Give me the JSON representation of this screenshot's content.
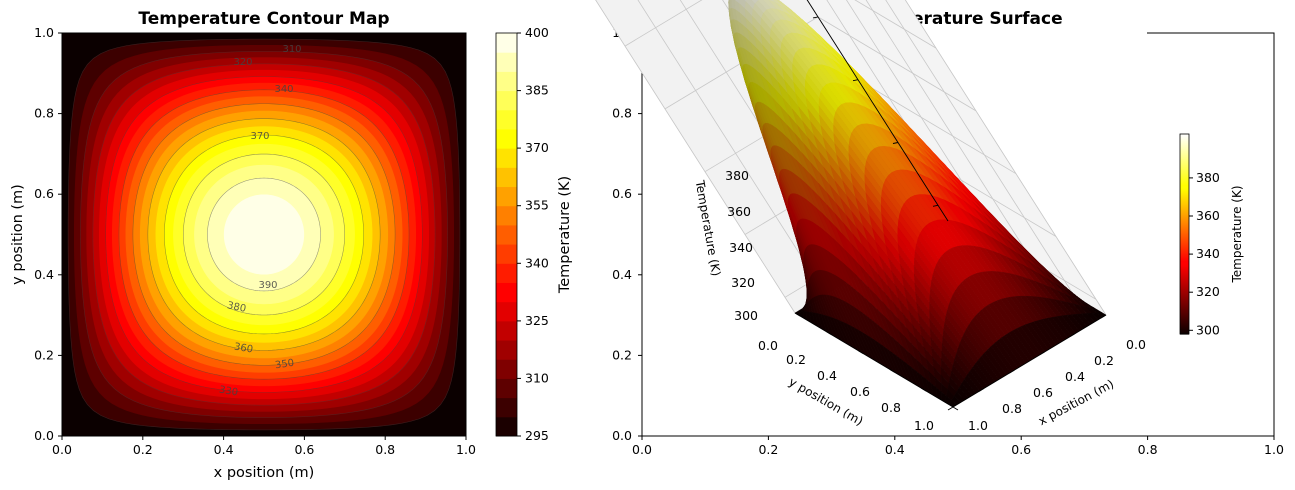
{
  "chart_data": [
    {
      "type": "heatmap",
      "title": "Temperature Contour Map",
      "xlabel": "x position (m)",
      "ylabel": "y position (m)",
      "xlim": [
        0.0,
        1.0
      ],
      "ylim": [
        0.0,
        1.0
      ],
      "xticks": [
        "0.0",
        "0.2",
        "0.4",
        "0.6",
        "0.8",
        "1.0"
      ],
      "yticks": [
        "0.0",
        "0.2",
        "0.4",
        "0.6",
        "0.8",
        "1.0"
      ],
      "colormap": "hot",
      "peak_location": [
        0.5,
        0.5
      ],
      "peak_value": 400,
      "edge_value": 295,
      "colorbar": {
        "label": "Temperature (K)",
        "range": [
          295,
          400
        ],
        "ticks": [
          "295",
          "310",
          "325",
          "340",
          "355",
          "370",
          "385",
          "400"
        ]
      },
      "contour_labels": [
        {
          "text": "310"
        },
        {
          "text": "320"
        },
        {
          "text": "340"
        },
        {
          "text": "370"
        },
        {
          "text": "390"
        },
        {
          "text": "380"
        },
        {
          "text": "360"
        },
        {
          "text": "350"
        },
        {
          "text": "330"
        }
      ]
    },
    {
      "type": "surface",
      "title": "3D Temperature Surface",
      "xlabel": "x position (m)",
      "ylabel": "y position (m)",
      "zlabel": "Temperature (K)",
      "xticks": [
        "0.0",
        "0.2",
        "0.4",
        "0.6",
        "0.8",
        "1.0"
      ],
      "yticks": [
        "0.0",
        "0.2",
        "0.4",
        "0.6",
        "0.8",
        "1.0"
      ],
      "zticks": [
        "300",
        "320",
        "340",
        "360",
        "380"
      ],
      "zlim": [
        295,
        400
      ],
      "outer_xticks": [
        "0.0",
        "0.2",
        "0.4",
        "0.6",
        "0.8",
        "1.0"
      ],
      "outer_yticks": [
        "0.0",
        "0.2",
        "0.4",
        "0.6",
        "0.8",
        "1.0"
      ],
      "colormap": "hot",
      "colorbar": {
        "label": "Temperature (K)",
        "range": [
          295,
          400
        ],
        "ticks": [
          "300",
          "320",
          "340",
          "360",
          "380"
        ]
      }
    }
  ]
}
